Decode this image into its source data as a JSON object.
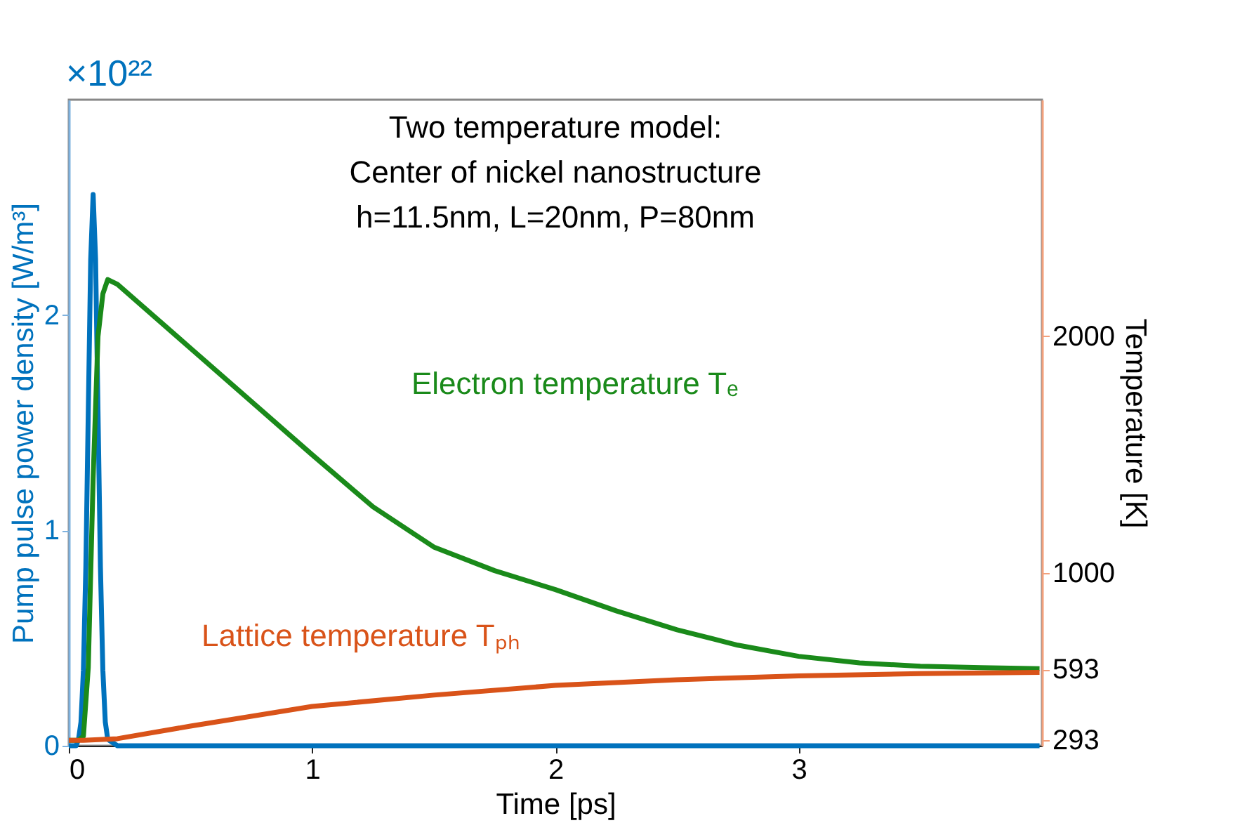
{
  "chart_data": {
    "type": "line",
    "xlabel": "Time [ps]",
    "ylabel": "Pump pulse power density [W/m³]",
    "y2label": "Temperature [K]",
    "xlim": [
      0,
      4
    ],
    "xticks": [
      0,
      1,
      2,
      3
    ],
    "ylim": [
      0,
      3
    ],
    "yticks": [
      0,
      1,
      2
    ],
    "y2lim": [
      270,
      3000
    ],
    "y2ticks": [
      293,
      593,
      1000,
      2000
    ],
    "grid": false,
    "marker": "none",
    "line_style": "solid",
    "annotations": [
      "×10²²",
      "Two temperature model:",
      "Center of nickel nanostructure",
      "h=11.5nm, L=20nm, P=80nm"
    ],
    "series": [
      {
        "color": "#0072bd",
        "axis": "y",
        "x": [
          0,
          0.03,
          0.04,
          0.05,
          0.06,
          0.07,
          0.08,
          0.09,
          0.1,
          0.11,
          0.12,
          0.13,
          0.14,
          0.15,
          0.16,
          0.2,
          3.99
        ],
        "values": [
          0,
          0,
          0.03,
          0.11,
          0.35,
          0.83,
          1.55,
          2.26,
          2.56,
          2.26,
          1.55,
          0.83,
          0.35,
          0.11,
          0.03,
          0,
          0
        ]
      },
      {
        "name": "Electron temperature Tₑ",
        "color": "#1a8a1a",
        "axis": "y2",
        "x": [
          0,
          0.04,
          0.06,
          0.08,
          0.1,
          0.12,
          0.14,
          0.16,
          0.2,
          0.5,
          1,
          1.25,
          1.5,
          1.75,
          2,
          2.25,
          2.5,
          2.75,
          3,
          3.25,
          3.5,
          3.75,
          3.99
        ],
        "values": [
          293,
          293,
          310,
          600,
          1400,
          2000,
          2180,
          2240,
          2220,
          1950,
          1500,
          1280,
          1110,
          1010,
          930,
          840,
          760,
          695,
          648,
          620,
          606,
          600,
          596
        ]
      },
      {
        "name": "Lattice temperature Tₚₕ",
        "color": "#d95319",
        "axis": "y2",
        "x": [
          0,
          0.06,
          0.2,
          0.5,
          1,
          1.5,
          2,
          2.5,
          3,
          3.5,
          3.99
        ],
        "values": [
          293,
          293,
          300,
          353,
          436,
          484,
          525,
          549,
          565,
          575,
          580
        ]
      }
    ]
  }
}
